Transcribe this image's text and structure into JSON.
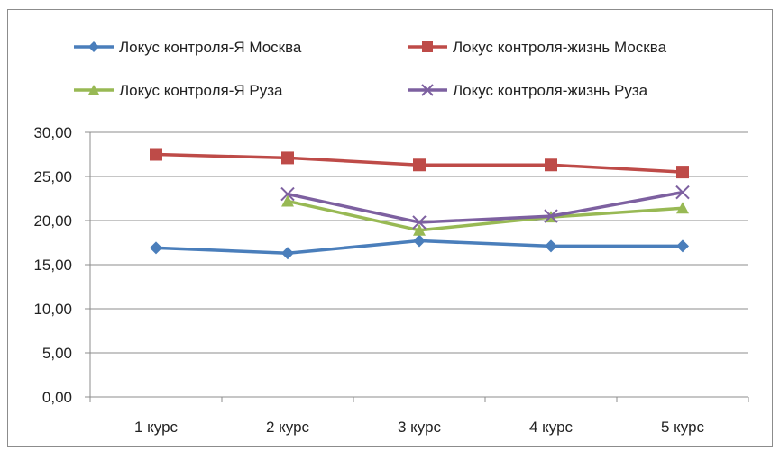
{
  "chart_data": {
    "type": "line",
    "categories": [
      "1 курс",
      "2 курс",
      "3 курс",
      "4 курс",
      "5 курс"
    ],
    "ylim": [
      0,
      30
    ],
    "yticks": [
      0,
      5,
      10,
      15,
      20,
      25,
      30
    ],
    "ytick_labels": [
      "0,00",
      "5,00",
      "10,00",
      "15,00",
      "20,00",
      "25,00",
      "30,00"
    ],
    "grid": true,
    "legend_position": "top",
    "series": [
      {
        "name": "Локус контроля-Я Москва",
        "color": "#4a7ebb",
        "marker": "diamond",
        "values": [
          16.9,
          16.3,
          17.7,
          17.1,
          17.1
        ]
      },
      {
        "name": "Локус контроля-жизнь Москва",
        "color": "#be4b48",
        "marker": "square",
        "values": [
          27.5,
          27.1,
          26.3,
          26.3,
          25.5
        ]
      },
      {
        "name": "Локус контроля-Я Руза",
        "color": "#98b954",
        "marker": "triangle",
        "values": [
          null,
          22.2,
          18.9,
          20.4,
          21.4
        ]
      },
      {
        "name": "Локус контроля-жизнь Руза",
        "color": "#7d60a0",
        "marker": "x",
        "values": [
          null,
          23.0,
          19.8,
          20.5,
          23.2
        ]
      }
    ]
  }
}
